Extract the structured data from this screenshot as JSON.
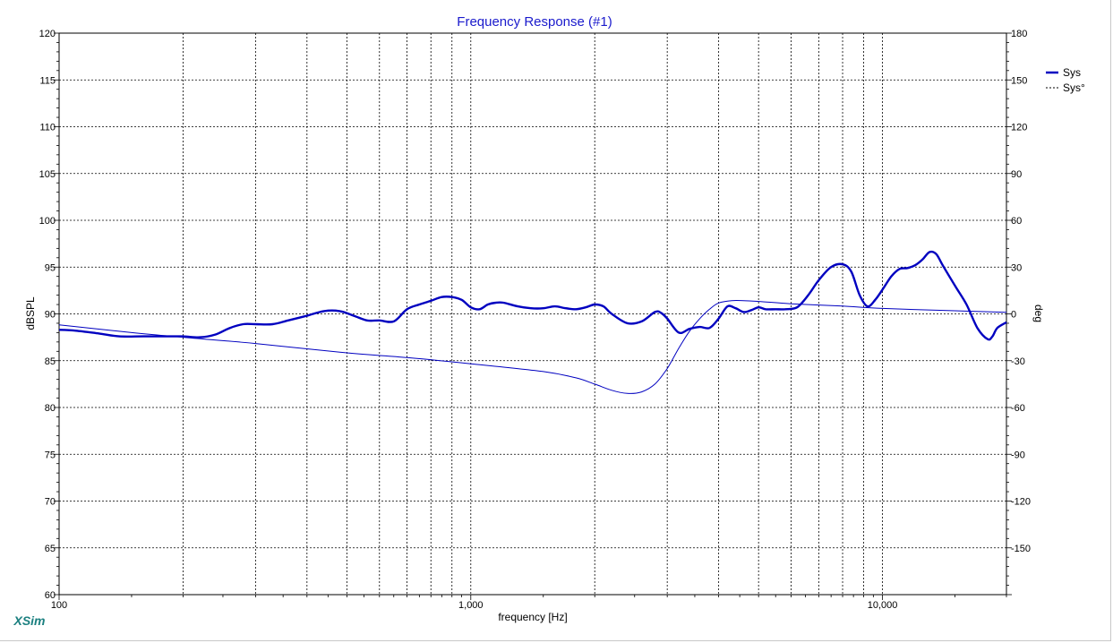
{
  "chart_data": {
    "type": "line",
    "title": "Frequency Response (#1)",
    "xlabel": "frequency [Hz]",
    "ylabel": "dBSPL",
    "y2label": "deg",
    "xscale": "log",
    "xlim": [
      100,
      20000
    ],
    "ylim": [
      60,
      120
    ],
    "y2lim": [
      -180,
      180
    ],
    "x_tick_labels": [
      {
        "value": 100,
        "label": "100"
      },
      {
        "value": 1000,
        "label": "1,000"
      },
      {
        "value": 10000,
        "label": "10,000"
      }
    ],
    "y_ticks": [
      60,
      65,
      70,
      75,
      80,
      85,
      90,
      95,
      100,
      105,
      110,
      115,
      120
    ],
    "y2_ticks": [
      -150,
      -120,
      -90,
      -60,
      -30,
      0,
      30,
      60,
      90,
      120,
      150,
      180
    ],
    "grid": true,
    "legend_position": "top-right",
    "watermark": "XSim",
    "series": [
      {
        "name": "Sys",
        "axis": "left",
        "color": "#0000c0",
        "style": "solid-thick",
        "x": [
          100,
          110,
          125,
          140,
          160,
          180,
          200,
          220,
          240,
          260,
          280,
          300,
          330,
          360,
          400,
          440,
          480,
          520,
          560,
          600,
          650,
          700,
          750,
          800,
          850,
          900,
          950,
          1000,
          1050,
          1100,
          1150,
          1200,
          1300,
          1400,
          1500,
          1600,
          1700,
          1800,
          1900,
          2000,
          2100,
          2200,
          2400,
          2600,
          2800,
          2900,
          3000,
          3200,
          3400,
          3600,
          3800,
          4000,
          4200,
          4400,
          4600,
          4800,
          5000,
          5200,
          5500,
          5800,
          6200,
          6600,
          7000,
          7500,
          8000,
          8400,
          8800,
          9200,
          9600,
          10000,
          10500,
          11000,
          11500,
          12000,
          12500,
          13000,
          13500,
          14000,
          15000,
          16000,
          17000,
          18000,
          18500,
          19000,
          20000
        ],
        "values": [
          88.3,
          88.2,
          87.9,
          87.6,
          87.6,
          87.6,
          87.6,
          87.5,
          87.8,
          88.5,
          88.9,
          88.9,
          88.9,
          89.3,
          89.8,
          90.3,
          90.3,
          89.8,
          89.3,
          89.3,
          89.2,
          90.5,
          91.0,
          91.4,
          91.8,
          91.8,
          91.5,
          90.7,
          90.5,
          91.0,
          91.2,
          91.2,
          90.8,
          90.6,
          90.6,
          90.8,
          90.6,
          90.5,
          90.7,
          91.0,
          90.8,
          90.0,
          89.0,
          89.2,
          90.2,
          90.1,
          89.5,
          88.0,
          88.4,
          88.6,
          88.5,
          89.5,
          90.8,
          90.6,
          90.2,
          90.4,
          90.7,
          90.5,
          90.5,
          90.5,
          90.7,
          92.0,
          93.6,
          95.0,
          95.3,
          94.5,
          92.0,
          90.8,
          91.5,
          92.6,
          94.0,
          94.8,
          94.9,
          95.2,
          95.8,
          96.6,
          96.4,
          95.2,
          93.0,
          91.0,
          88.5,
          87.3,
          87.6,
          88.5,
          89.1
        ]
      },
      {
        "name": "Sys°",
        "axis": "right",
        "color": "#0000c0",
        "style": "dashed-thin",
        "x": [
          100,
          150,
          200,
          300,
          500,
          700,
          1000,
          1500,
          1800,
          2000,
          2200,
          2400,
          2600,
          2800,
          3000,
          3200,
          3400,
          3600,
          3800,
          4000,
          4300,
          4600,
          5000,
          6000,
          8000,
          10000,
          15000,
          20000
        ],
        "values": [
          -7,
          -12,
          -15,
          -19,
          -25,
          -28,
          -32,
          -37,
          -41,
          -45,
          -49,
          -51,
          -50,
          -45,
          -35,
          -22,
          -11,
          -3,
          3,
          7,
          8.5,
          8.5,
          8,
          6.5,
          5,
          3.5,
          2,
          1
        ]
      }
    ]
  }
}
